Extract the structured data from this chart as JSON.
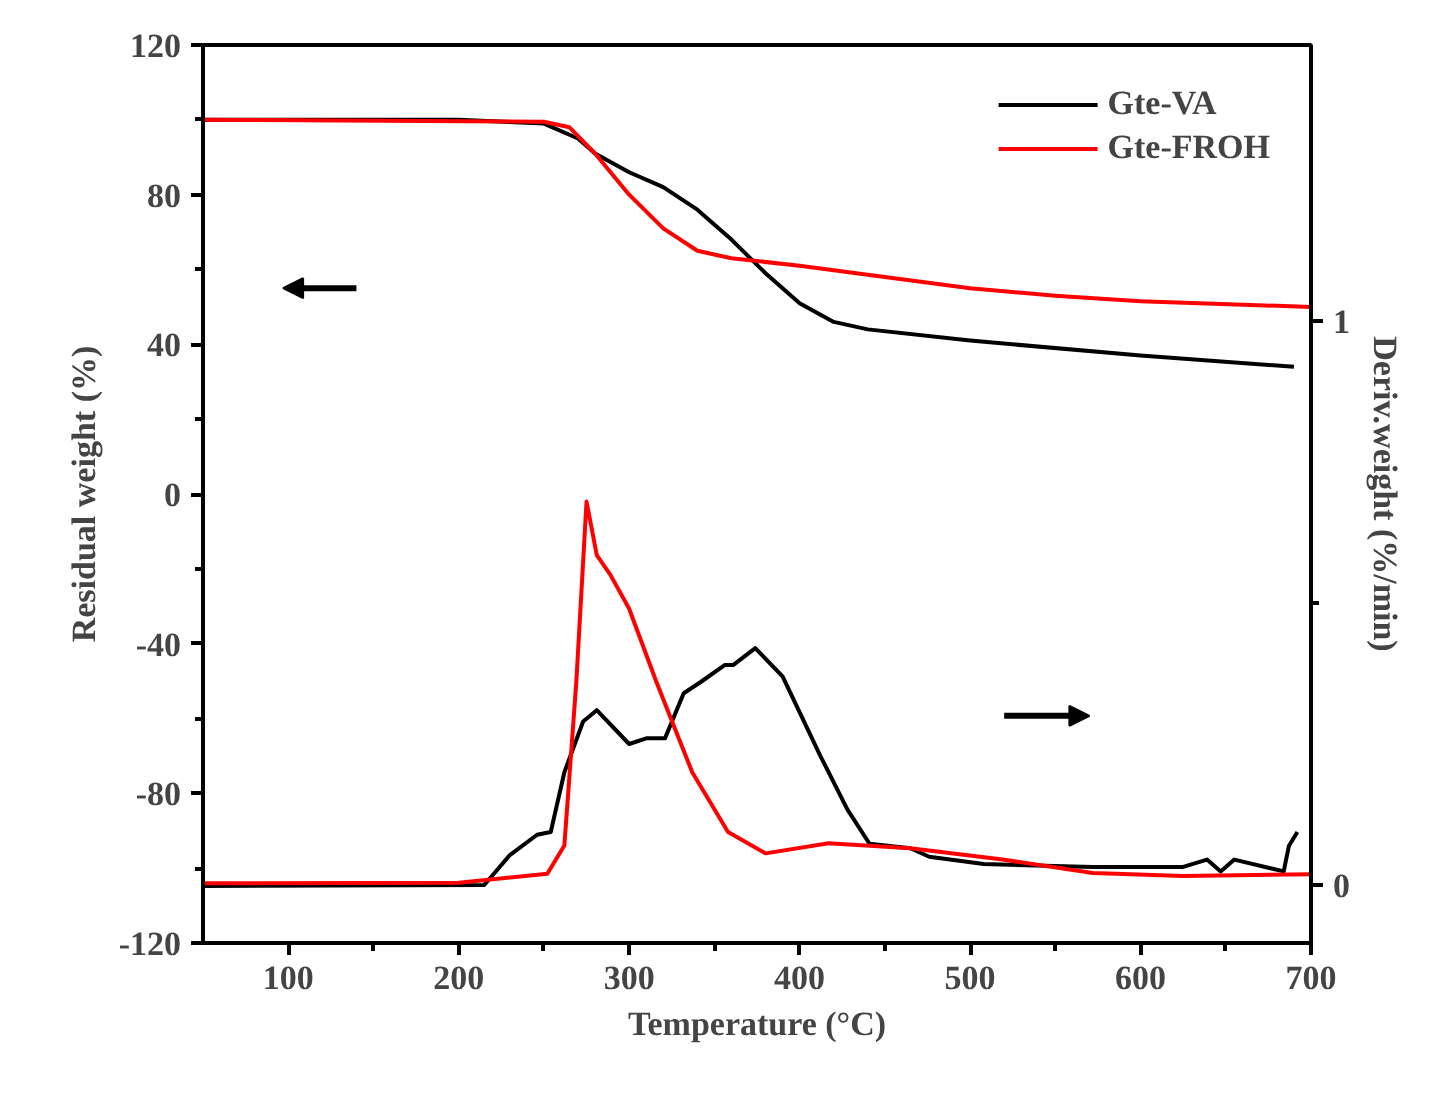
{
  "chart_data": {
    "type": "line",
    "xlabel": "Temperature (°C)",
    "ylabel": "Residual weight (%)",
    "y2label": "Deriv.weight (%/min)",
    "xlim": [
      50,
      700
    ],
    "ylim": [
      -120,
      120
    ],
    "y2lim": [
      -0.103,
      1.49
    ],
    "xticks": [
      {
        "value": 100,
        "label": "100"
      },
      {
        "value": 150,
        "label": null
      },
      {
        "value": 200,
        "label": "200"
      },
      {
        "value": 250,
        "label": null
      },
      {
        "value": 300,
        "label": "300"
      },
      {
        "value": 350,
        "label": null
      },
      {
        "value": 400,
        "label": "400"
      },
      {
        "value": 450,
        "label": null
      },
      {
        "value": 500,
        "label": "500"
      },
      {
        "value": 550,
        "label": null
      },
      {
        "value": 600,
        "label": "600"
      },
      {
        "value": 650,
        "label": null
      },
      {
        "value": 700,
        "label": "700"
      }
    ],
    "yticks": [
      -120,
      {
        "value": -100,
        "label": null
      },
      -80,
      {
        "value": -60,
        "label": null
      },
      -40,
      {
        "value": -20,
        "label": null
      },
      0,
      {
        "value": 20,
        "label": null
      },
      40,
      {
        "value": 60,
        "label": null
      },
      80,
      {
        "value": 100,
        "label": null
      },
      120
    ],
    "y2ticks": [
      0,
      {
        "value": 0.5,
        "label": null
      },
      1
    ],
    "grid": false,
    "legend": "top right",
    "marker": "none",
    "line_style": "solid",
    "series": [
      {
        "name": "Gte-VA",
        "color": "#000000",
        "x": [
          50,
          200,
          250,
          270,
          280,
          300,
          320,
          340,
          360,
          380,
          400,
          420,
          440,
          500,
          600,
          690
        ],
        "values": [
          100,
          100,
          99,
          95,
          91,
          86,
          82,
          76,
          68,
          59,
          51,
          46,
          44,
          41,
          37,
          34
        ]
      },
      {
        "name": "Gte-FROH",
        "color": "#ff0000",
        "x": [
          50,
          250,
          265,
          280,
          300,
          320,
          340,
          360,
          400,
          450,
          500,
          550,
          600,
          700
        ],
        "values": [
          100,
          99.5,
          98,
          91,
          80,
          71,
          65,
          63,
          61,
          58,
          55,
          53,
          51.5,
          50
        ]
      },
      {
        "color": "#000000",
        "axis": "y2",
        "x": [
          50,
          215,
          230,
          246,
          254,
          262,
          273,
          281,
          300,
          310,
          321,
          332,
          342,
          356,
          361,
          374,
          390,
          412,
          428,
          441,
          465,
          476,
          508,
          572,
          625,
          639,
          647,
          655,
          684,
          687,
          692
        ],
        "values": [
          -0.002,
          0,
          0.053,
          0.089,
          0.094,
          0.2,
          0.29,
          0.31,
          0.25,
          0.26,
          0.26,
          0.34,
          0.36,
          0.39,
          0.39,
          0.42,
          0.37,
          0.23,
          0.134,
          0.073,
          0.065,
          0.05,
          0.037,
          0.032,
          0.032,
          0.045,
          0.024,
          0.045,
          0.024,
          0.069,
          0.094
        ]
      },
      {
        "color": "#ff0000",
        "axis": "y2",
        "x": [
          50,
          200,
          252,
          262,
          269,
          275,
          281,
          289,
          300,
          316,
          337,
          358,
          380,
          417,
          465,
          519,
          572,
          625,
          700
        ],
        "values": [
          0.003,
          0.004,
          0.02,
          0.07,
          0.36,
          0.68,
          0.585,
          0.55,
          0.49,
          0.36,
          0.2,
          0.094,
          0.056,
          0.074,
          0.065,
          0.045,
          0.021,
          0.016,
          0.019
        ]
      }
    ]
  }
}
